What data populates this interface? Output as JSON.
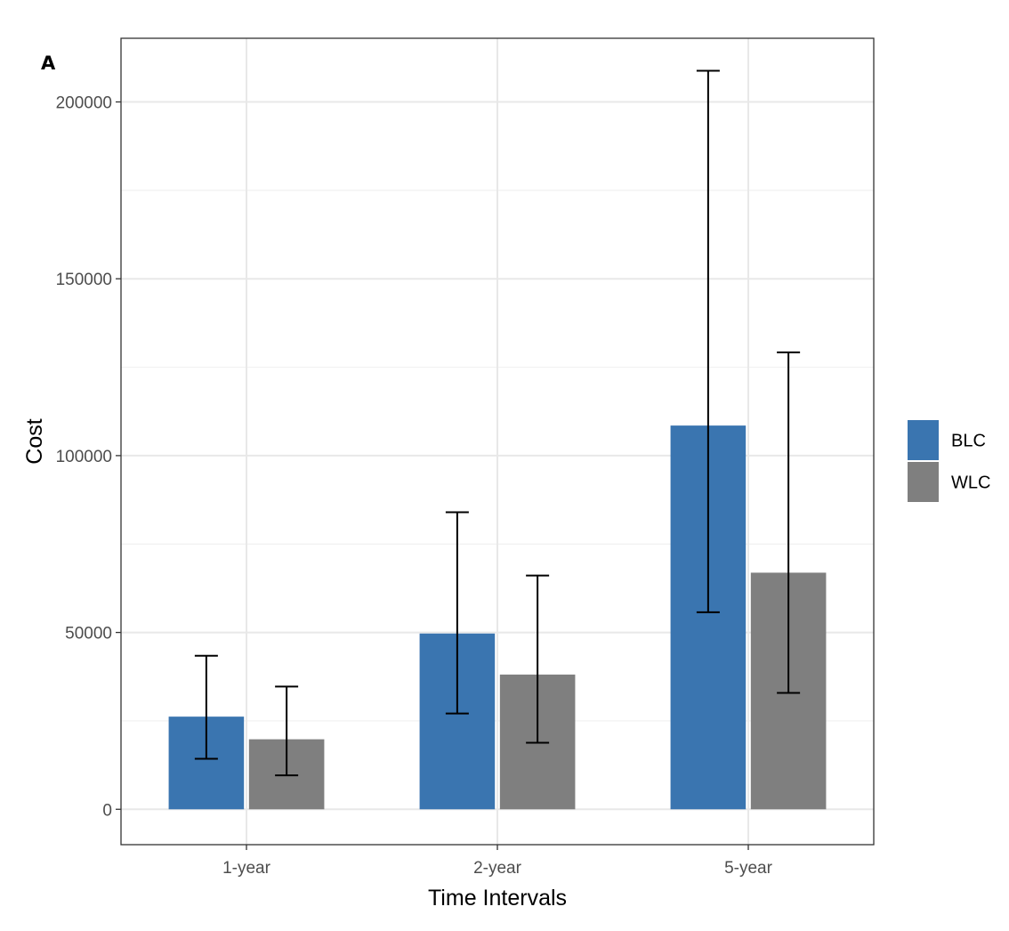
{
  "chart_data": {
    "type": "bar",
    "panel_label": "A",
    "xlabel": "Time Intervals",
    "ylabel": "Cost",
    "categories": [
      "1-year",
      "2-year",
      "5-year"
    ],
    "ylim": [
      -10000,
      218000
    ],
    "yticks": [
      0,
      50000,
      100000,
      150000,
      200000
    ],
    "ytick_labels": [
      "0",
      "50000",
      "100000",
      "150000",
      "200000"
    ],
    "grid": true,
    "legend_position": "right",
    "series": [
      {
        "name": "BLC",
        "color": "#3a75b0",
        "values": [
          26200,
          49700,
          108500
        ],
        "error_low": [
          14300,
          27100,
          55700
        ],
        "error_high": [
          43400,
          84000,
          208800
        ]
      },
      {
        "name": "WLC",
        "color": "#7f7f7f",
        "values": [
          19800,
          38100,
          66900
        ],
        "error_low": [
          9600,
          18800,
          32900
        ],
        "error_high": [
          34700,
          66100,
          129200
        ]
      }
    ]
  }
}
